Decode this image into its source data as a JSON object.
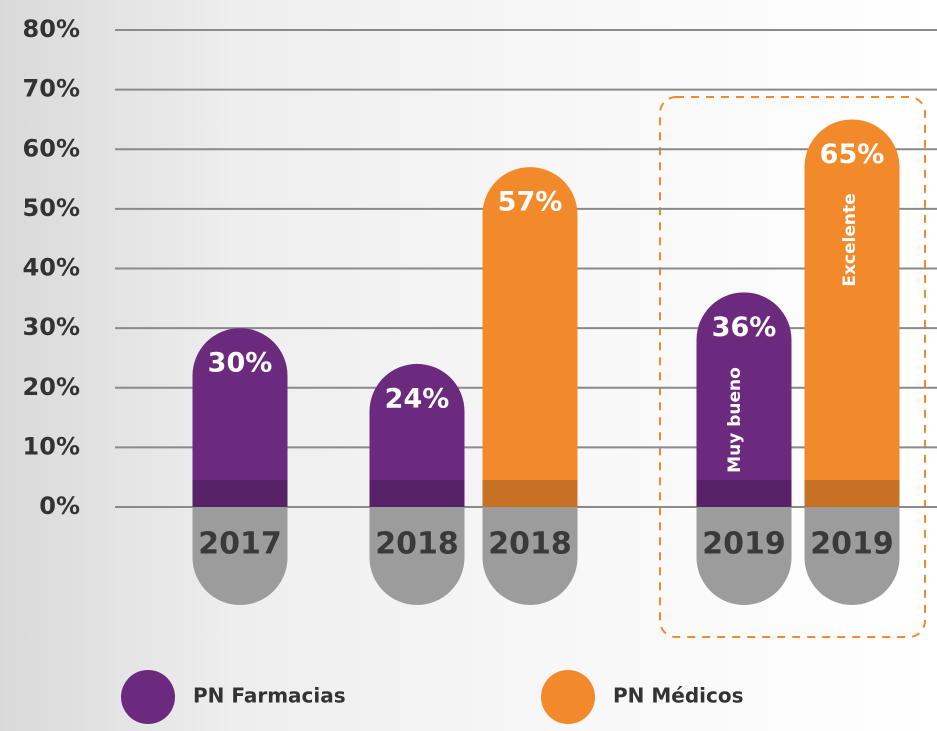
{
  "chart_data": {
    "type": "bar",
    "categories": [
      "2017",
      "2018",
      "2018",
      "2019",
      "2019"
    ],
    "series": [
      {
        "name": "PN Farmacias",
        "color": "#6b2a7e",
        "values": [
          30,
          24,
          null,
          36,
          null
        ],
        "value_labels": [
          "30%",
          "24%",
          null,
          "36%",
          null
        ]
      },
      {
        "name": "PN Médicos",
        "color": "#f28a2c",
        "values": [
          null,
          null,
          57,
          null,
          65
        ],
        "value_labels": [
          null,
          null,
          "57%",
          null,
          "65%"
        ]
      }
    ],
    "annotations": [
      "Muy bueno",
      "Excelente"
    ],
    "ylim": [
      0,
      80
    ],
    "yticks": [
      {
        "value": 0,
        "label": "0%"
      },
      {
        "value": 10,
        "label": "10%"
      },
      {
        "value": 20,
        "label": "20%"
      },
      {
        "value": 30,
        "label": "30%"
      },
      {
        "value": 40,
        "label": "40%"
      },
      {
        "value": 50,
        "label": "50%"
      },
      {
        "value": 60,
        "label": "60%"
      },
      {
        "value": 70,
        "label": "70%"
      },
      {
        "value": 80,
        "label": "80%"
      }
    ],
    "grid": true
  }
}
